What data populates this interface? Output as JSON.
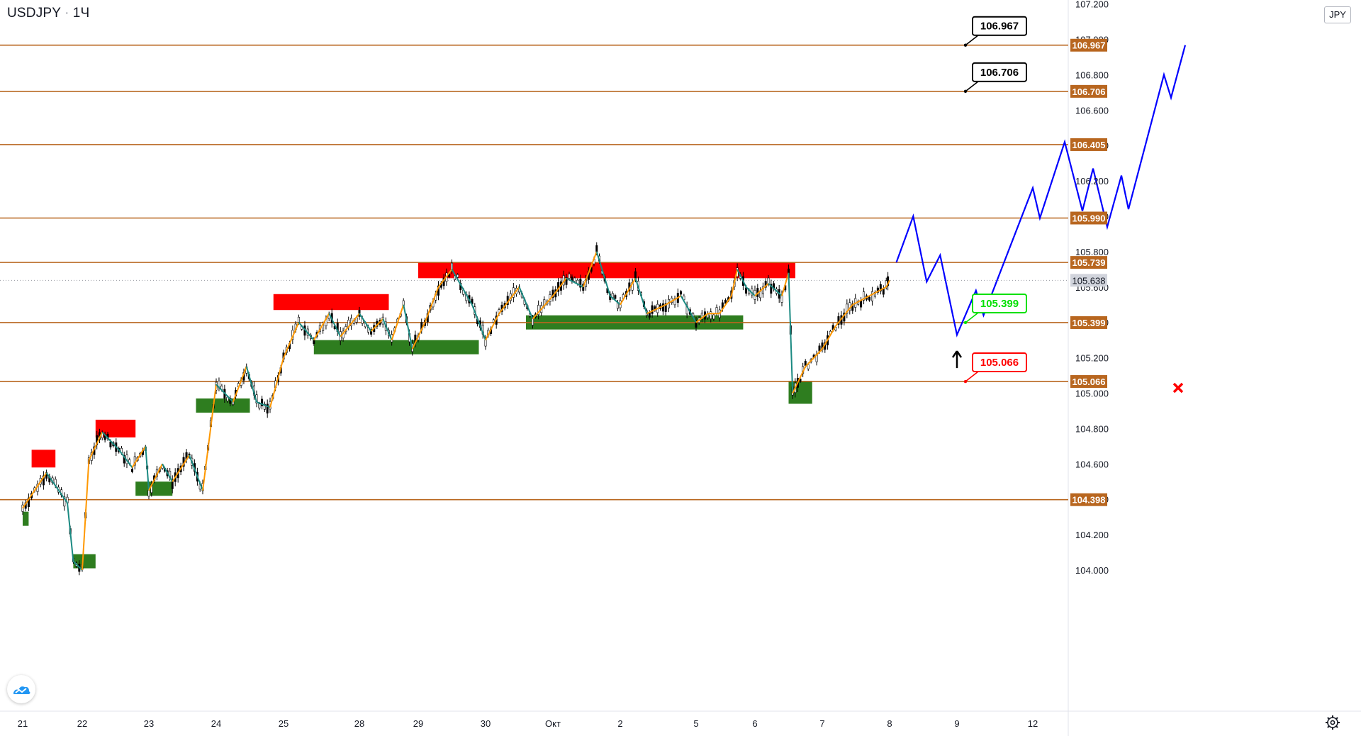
{
  "header": {
    "symbol": "USDJPY",
    "interval": "1Ч",
    "currency": "JPY"
  },
  "icons": {
    "logo": "tradingview-logo",
    "settings": "gear-icon"
  },
  "colors": {
    "level_line": "#b8661f",
    "level_label_bg": "#b8661f",
    "current_price_bg": "#d1d4dc",
    "projection": "#0000ff",
    "zigzag_up": "#ff9800",
    "zigzag_down": "#1b8a82",
    "supply_zone": "#ff0000",
    "demand_zone": "#2e7d1f",
    "target_label": "#000000",
    "support_label": "#00e000",
    "stop_label": "#ff0000"
  },
  "chart_data": {
    "type": "line",
    "instrument": "USDJPY",
    "timeframe": "1Ч",
    "x_axis": {
      "tick_labels": [
        "21",
        "22",
        "23",
        "24",
        "25",
        "28",
        "29",
        "30",
        "Окт",
        "2",
        "5",
        "6",
        "7",
        "8",
        "9",
        "12"
      ]
    },
    "y_axis": {
      "range": [
        103.95,
        107.2
      ],
      "tick_labels": [
        "104.000",
        "104.200",
        "104.400",
        "104.600",
        "104.800",
        "105.000",
        "105.200",
        "105.400",
        "105.600",
        "105.800",
        "106.000",
        "106.200",
        "106.400",
        "106.600",
        "106.800",
        "107.000",
        "107.200"
      ]
    },
    "current_price": 105.638,
    "levels": [
      106.967,
      106.706,
      106.405,
      105.99,
      105.739,
      105.399,
      105.066,
      104.398
    ],
    "level_labels": [
      "106.967",
      "106.706",
      "106.405",
      "105.990",
      "105.739",
      "105.399",
      "105.066",
      "104.398"
    ],
    "current_price_label": "105.638",
    "callouts": [
      {
        "text": "106.967",
        "price": 106.967,
        "kind": "target"
      },
      {
        "text": "106.706",
        "price": 106.706,
        "kind": "target"
      },
      {
        "text": "105.399",
        "price": 105.399,
        "kind": "support"
      },
      {
        "text": "105.066",
        "price": 105.066,
        "kind": "stop"
      }
    ],
    "price_path": [
      {
        "x": 0.0,
        "y": 104.35
      },
      {
        "x": 0.4,
        "y": 104.55
      },
      {
        "x": 0.75,
        "y": 104.38
      },
      {
        "x": 0.85,
        "y": 104.05
      },
      {
        "x": 1.0,
        "y": 104.0
      },
      {
        "x": 1.1,
        "y": 104.62
      },
      {
        "x": 1.3,
        "y": 104.78
      },
      {
        "x": 1.55,
        "y": 104.68
      },
      {
        "x": 1.75,
        "y": 104.58
      },
      {
        "x": 1.95,
        "y": 104.7
      },
      {
        "x": 2.0,
        "y": 104.45
      },
      {
        "x": 2.2,
        "y": 104.6
      },
      {
        "x": 2.35,
        "y": 104.5
      },
      {
        "x": 2.6,
        "y": 104.65
      },
      {
        "x": 2.8,
        "y": 104.45
      },
      {
        "x": 3.0,
        "y": 105.05
      },
      {
        "x": 3.25,
        "y": 104.95
      },
      {
        "x": 3.45,
        "y": 105.15
      },
      {
        "x": 3.6,
        "y": 104.95
      },
      {
        "x": 3.8,
        "y": 104.92
      },
      {
        "x": 4.0,
        "y": 105.2
      },
      {
        "x": 4.2,
        "y": 105.4
      },
      {
        "x": 4.4,
        "y": 105.3
      },
      {
        "x": 4.6,
        "y": 105.45
      },
      {
        "x": 4.75,
        "y": 105.32
      },
      {
        "x": 5.0,
        "y": 105.45
      },
      {
        "x": 5.2,
        "y": 105.35
      },
      {
        "x": 5.4,
        "y": 105.42
      },
      {
        "x": 5.55,
        "y": 105.3
      },
      {
        "x": 5.75,
        "y": 105.5
      },
      {
        "x": 5.9,
        "y": 105.25
      },
      {
        "x": 6.1,
        "y": 105.4
      },
      {
        "x": 6.3,
        "y": 105.6
      },
      {
        "x": 6.5,
        "y": 105.7
      },
      {
        "x": 6.8,
        "y": 105.5
      },
      {
        "x": 7.0,
        "y": 105.3
      },
      {
        "x": 7.2,
        "y": 105.45
      },
      {
        "x": 7.5,
        "y": 105.6
      },
      {
        "x": 7.7,
        "y": 105.42
      },
      {
        "x": 8.0,
        "y": 105.55
      },
      {
        "x": 8.2,
        "y": 105.65
      },
      {
        "x": 8.45,
        "y": 105.6
      },
      {
        "x": 8.65,
        "y": 105.8
      },
      {
        "x": 8.85,
        "y": 105.55
      },
      {
        "x": 9.0,
        "y": 105.5
      },
      {
        "x": 9.2,
        "y": 105.65
      },
      {
        "x": 9.35,
        "y": 105.45
      },
      {
        "x": 9.6,
        "y": 105.5
      },
      {
        "x": 9.8,
        "y": 105.55
      },
      {
        "x": 10.0,
        "y": 105.4
      },
      {
        "x": 10.2,
        "y": 105.45
      },
      {
        "x": 10.4,
        "y": 105.45
      },
      {
        "x": 10.6,
        "y": 105.55
      },
      {
        "x": 10.7,
        "y": 105.7
      },
      {
        "x": 10.85,
        "y": 105.6
      },
      {
        "x": 11.0,
        "y": 105.55
      },
      {
        "x": 11.2,
        "y": 105.62
      },
      {
        "x": 11.4,
        "y": 105.55
      },
      {
        "x": 11.5,
        "y": 105.68
      },
      {
        "x": 11.56,
        "y": 105.0
      },
      {
        "x": 11.75,
        "y": 105.15
      },
      {
        "x": 12.0,
        "y": 105.25
      },
      {
        "x": 12.2,
        "y": 105.38
      },
      {
        "x": 12.45,
        "y": 105.5
      },
      {
        "x": 12.7,
        "y": 105.55
      },
      {
        "x": 12.95,
        "y": 105.6
      },
      {
        "x": 13.0,
        "y": 105.638
      }
    ],
    "projection": [
      {
        "x": 13.1,
        "y": 105.739
      },
      {
        "x": 13.35,
        "y": 106.0
      },
      {
        "x": 13.55,
        "y": 105.63
      },
      {
        "x": 13.75,
        "y": 105.78
      },
      {
        "x": 14.0,
        "y": 105.33
      },
      {
        "x": 14.25,
        "y": 105.58
      },
      {
        "x": 14.35,
        "y": 105.44
      },
      {
        "x": 15.0,
        "y": 106.16
      },
      {
        "x": 15.1,
        "y": 105.99
      },
      {
        "x": 15.45,
        "y": 106.42
      },
      {
        "x": 15.7,
        "y": 106.03
      },
      {
        "x": 15.85,
        "y": 106.27
      },
      {
        "x": 16.05,
        "y": 105.94
      },
      {
        "x": 16.25,
        "y": 106.23
      },
      {
        "x": 16.35,
        "y": 106.04
      },
      {
        "x": 16.85,
        "y": 106.8
      },
      {
        "x": 16.95,
        "y": 106.67
      },
      {
        "x": 17.15,
        "y": 106.967
      }
    ],
    "zones": [
      {
        "type": "supply",
        "x0": 0.15,
        "x1": 0.55,
        "y0": 104.58,
        "y1": 104.68
      },
      {
        "type": "supply",
        "x0": 1.2,
        "x1": 1.8,
        "y0": 104.75,
        "y1": 104.85
      },
      {
        "type": "supply",
        "x0": 3.85,
        "x1": 5.5,
        "y0": 105.47,
        "y1": 105.56
      },
      {
        "type": "supply",
        "x0": 6.0,
        "x1": 11.6,
        "y0": 105.65,
        "y1": 105.74
      },
      {
        "type": "demand",
        "x0": 0.0,
        "x1": 0.1,
        "y0": 104.25,
        "y1": 104.33
      },
      {
        "type": "demand",
        "x0": 0.85,
        "x1": 1.2,
        "y0": 104.01,
        "y1": 104.09
      },
      {
        "type": "demand",
        "x0": 1.8,
        "x1": 2.35,
        "y0": 104.42,
        "y1": 104.5
      },
      {
        "type": "demand",
        "x0": 2.7,
        "x1": 3.5,
        "y0": 104.89,
        "y1": 104.97
      },
      {
        "type": "demand",
        "x0": 4.4,
        "x1": 6.9,
        "y0": 105.22,
        "y1": 105.3
      },
      {
        "type": "demand",
        "x0": 7.6,
        "x1": 10.8,
        "y0": 105.36,
        "y1": 105.44
      },
      {
        "type": "demand",
        "x0": 11.5,
        "x1": 11.85,
        "y0": 104.94,
        "y1": 105.07
      }
    ],
    "markers": [
      {
        "type": "arrow-up",
        "x": 14.0,
        "y": 105.19
      },
      {
        "type": "cross",
        "x": 17.05,
        "y": 105.03
      }
    ],
    "grid": false
  }
}
